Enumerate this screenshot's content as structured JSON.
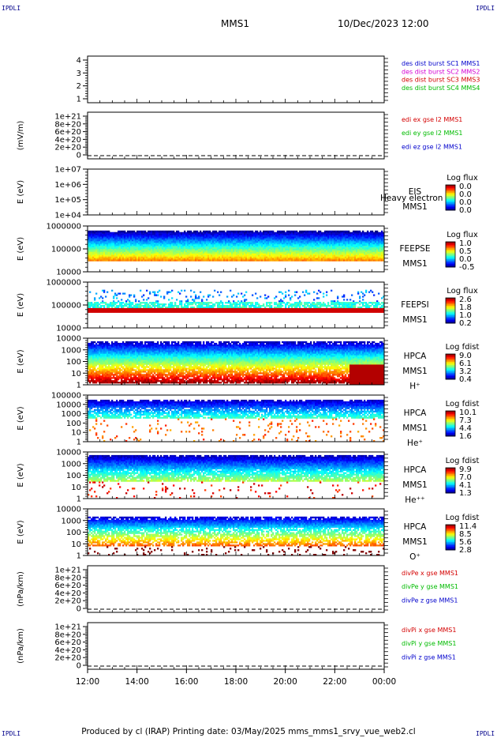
{
  "corner_labels": {
    "top_left": "IPDLI",
    "top_right": "IPDLI",
    "bottom_left": "IPDLI",
    "bottom_right": "IPDLI"
  },
  "header": {
    "spacecraft": "MMS1",
    "datetime": "10/Dec/2023 12:00"
  },
  "footer": "Produced by cl (IRAP)   Printing date: 03/May/2025   mms_mms1_srvy_vue_web2.cl",
  "chart_data": {
    "type": "heatmap",
    "x_tick_labels": [
      "12:00",
      "14:00",
      "16:00",
      "18:00",
      "20:00",
      "22:00",
      "00:00"
    ],
    "colors": {
      "red": "#d40000",
      "green": "#00bb00",
      "blue": "#0000cc",
      "magenta": "#d400d4"
    },
    "panels": [
      {
        "id": "des",
        "ylabel": "",
        "y_ticks": [
          "4",
          "3",
          "2",
          "1"
        ],
        "kind": "empty",
        "legend": [
          {
            "text": "des dist burst SC1 MMS1",
            "color": "#0000cc"
          },
          {
            "text": "des dist burst SC2 MMS2",
            "color": "#d400d4"
          },
          {
            "text": "des dist burst SC3 MMS3",
            "color": "#d40000"
          },
          {
            "text": "des dist burst SC4 MMS4",
            "color": "#00bb00"
          }
        ]
      },
      {
        "id": "edi",
        "ylabel": "(mV/m)",
        "y_ticks": [
          "1e+21",
          "8e+20",
          "6e+20",
          "4e+20",
          "2e+20",
          "0"
        ],
        "kind": "zero-line",
        "legend": [
          {
            "text": "edi ex gse l2 MMS1",
            "color": "#d40000"
          },
          {
            "text": "edi ey gse l2 MMS1",
            "color": "#00bb00"
          },
          {
            "text": "edi ez gse l2 MMS1",
            "color": "#0000cc"
          }
        ]
      },
      {
        "id": "eis",
        "ylabel": "E (eV)",
        "y_ticks": [
          "1e+07",
          "1e+06",
          "1e+05",
          "1e+04"
        ],
        "kind": "empty",
        "side_labels": [
          "EIS",
          "MMS1"
        ],
        "overlay_text": "Heavy electron to",
        "cbar_title": "Log flux",
        "cbar_ticks": [
          "0.0",
          "0.0",
          "0.0",
          "0.0"
        ]
      },
      {
        "id": "feepse",
        "ylabel": "E (eV)",
        "y_ticks": [
          "1000000",
          "100000",
          "10000"
        ],
        "kind": "spectrogram",
        "side_labels": [
          "FEEPSE",
          "MMS1"
        ],
        "cbar_title": "Log flux",
        "cbar_ticks": [
          "1.0",
          "0.5",
          "0.0",
          "-0.5"
        ]
      },
      {
        "id": "feepsi",
        "ylabel": "E (eV)",
        "y_ticks": [
          "1000000",
          "100000",
          "10000"
        ],
        "kind": "spectrogram",
        "side_labels": [
          "FEEPSI",
          "MMS1"
        ],
        "cbar_title": "Log flux",
        "cbar_ticks": [
          "2.6",
          "1.8",
          "1.0",
          "0.2"
        ]
      },
      {
        "id": "hpca_h",
        "ylabel": "E (eV)",
        "y_ticks": [
          "10000",
          "1000",
          "100",
          "10",
          "1"
        ],
        "kind": "spectrogram",
        "side_labels": [
          "HPCA",
          "MMS1",
          "H⁺"
        ],
        "cbar_title": "Log fdist",
        "cbar_ticks": [
          "9.0",
          "6.1",
          "3.2",
          "0.4"
        ]
      },
      {
        "id": "hpca_he",
        "ylabel": "E (eV)",
        "y_ticks": [
          "100000",
          "10000",
          "1000",
          "100",
          "10",
          "1"
        ],
        "kind": "spectrogram",
        "side_labels": [
          "HPCA",
          "MMS1",
          "He⁺"
        ],
        "cbar_title": "Log fdist",
        "cbar_ticks": [
          "10.1",
          "7.3",
          "4.4",
          "1.6"
        ]
      },
      {
        "id": "hpca_hepp",
        "ylabel": "E (eV)",
        "y_ticks": [
          "10000",
          "1000",
          "100",
          "10",
          "1"
        ],
        "kind": "spectrogram",
        "side_labels": [
          "HPCA",
          "MMS1",
          "He⁺⁺"
        ],
        "cbar_title": "Log fdist",
        "cbar_ticks": [
          "9.9",
          "7.0",
          "4.1",
          "1.3"
        ]
      },
      {
        "id": "hpca_o",
        "ylabel": "E (eV)",
        "y_ticks": [
          "10000",
          "1000",
          "100",
          "10",
          "1"
        ],
        "kind": "spectrogram",
        "side_labels": [
          "HPCA",
          "MMS1",
          "O⁺"
        ],
        "cbar_title": "Log fdist",
        "cbar_ticks": [
          "11.4",
          "8.5",
          "5.6",
          "2.8"
        ]
      },
      {
        "id": "divpe",
        "ylabel": "(nPa/km)",
        "y_ticks": [
          "1e+21",
          "8e+20",
          "6e+20",
          "4e+20",
          "2e+20",
          "0"
        ],
        "kind": "zero-line",
        "legend": [
          {
            "text": "divPe x gse MMS1",
            "color": "#d40000"
          },
          {
            "text": "divPe y gse MMS1",
            "color": "#00bb00"
          },
          {
            "text": "divPe z gse MMS1",
            "color": "#0000cc"
          }
        ]
      },
      {
        "id": "divpi",
        "ylabel": "(nPa/km)",
        "y_ticks": [
          "1e+21",
          "8e+20",
          "6e+20",
          "4e+20",
          "2e+20",
          "0"
        ],
        "kind": "zero-line",
        "legend": [
          {
            "text": "divPi x gse MMS1",
            "color": "#d40000"
          },
          {
            "text": "divPi y gse MMS1",
            "color": "#00bb00"
          },
          {
            "text": "divPi z gse MMS1",
            "color": "#0000cc"
          }
        ]
      }
    ]
  }
}
